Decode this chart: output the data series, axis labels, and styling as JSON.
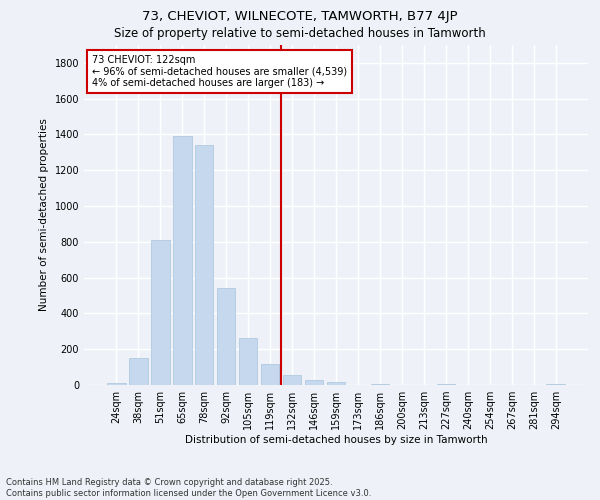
{
  "title": "73, CHEVIOT, WILNECOTE, TAMWORTH, B77 4JP",
  "subtitle": "Size of property relative to semi-detached houses in Tamworth",
  "xlabel": "Distribution of semi-detached houses by size in Tamworth",
  "ylabel": "Number of semi-detached properties",
  "categories": [
    "24sqm",
    "38sqm",
    "51sqm",
    "65sqm",
    "78sqm",
    "92sqm",
    "105sqm",
    "119sqm",
    "132sqm",
    "146sqm",
    "159sqm",
    "173sqm",
    "186sqm",
    "200sqm",
    "213sqm",
    "227sqm",
    "240sqm",
    "254sqm",
    "267sqm",
    "281sqm",
    "294sqm"
  ],
  "values": [
    10,
    150,
    810,
    1390,
    1340,
    540,
    260,
    115,
    55,
    30,
    15,
    0,
    5,
    0,
    0,
    5,
    0,
    0,
    0,
    0,
    5
  ],
  "bar_color": "#c5d8ed",
  "bar_edge_color": "#a8c4dc",
  "vline_x_index": 7,
  "vline_color": "#cc0000",
  "vline_label": "73 CHEVIOT: 122sqm",
  "annotation_smaller": "← 96% of semi-detached houses are smaller (4,539)",
  "annotation_larger": "4% of semi-detached houses are larger (183) →",
  "box_color": "#cc0000",
  "ylim": [
    0,
    1900
  ],
  "yticks": [
    0,
    200,
    400,
    600,
    800,
    1000,
    1200,
    1400,
    1600,
    1800
  ],
  "footer_line1": "Contains HM Land Registry data © Crown copyright and database right 2025.",
  "footer_line2": "Contains public sector information licensed under the Open Government Licence v3.0.",
  "bg_color": "#eef2f8",
  "plot_bg_color": "#eef2f8",
  "grid_color": "#ffffff",
  "title_fontsize": 9.5,
  "subtitle_fontsize": 8.5,
  "axis_label_fontsize": 7.5,
  "tick_fontsize": 7,
  "annotation_fontsize": 7,
  "footer_fontsize": 6
}
